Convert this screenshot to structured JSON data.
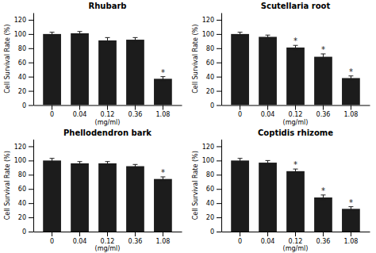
{
  "chart_data": [
    {
      "type": "bar",
      "title": "Rhubarb",
      "categories": [
        "0",
        "0.04",
        "0.12",
        "0.36",
        "1.08"
      ],
      "values": [
        100,
        101,
        91,
        92,
        37
      ],
      "errors": [
        2.5,
        2.5,
        4,
        3,
        3
      ],
      "significance_labels": [
        null,
        null,
        null,
        null,
        "*"
      ],
      "color": "#1c1c1c",
      "xlabel": "(mg/ml)",
      "ylabel": "Cell Survival Rate (%)",
      "ylim": [
        0,
        130
      ],
      "yticks": [
        0,
        20,
        40,
        60,
        80,
        100,
        120
      ],
      "grid": false
    },
    {
      "type": "bar",
      "title": "Scutellaria root",
      "categories": [
        "0",
        "0.04",
        "0.12",
        "0.36",
        "1.08"
      ],
      "values": [
        100,
        96,
        81,
        68,
        38
      ],
      "errors": [
        2.5,
        2.5,
        3,
        4,
        3
      ],
      "significance_labels": [
        null,
        null,
        "*",
        "*",
        "*"
      ],
      "color": "#1c1c1c",
      "xlabel": "(mg/ml)",
      "ylabel": "Cell Survival Rate (%)",
      "ylim": [
        0,
        130
      ],
      "yticks": [
        0,
        20,
        40,
        60,
        80,
        100,
        120
      ],
      "grid": false
    },
    {
      "type": "bar",
      "title": "Phellodendron bark",
      "categories": [
        "0",
        "0.04",
        "0.12",
        "0.36",
        "1.08"
      ],
      "values": [
        100,
        96,
        96,
        92,
        74
      ],
      "errors": [
        3,
        2.5,
        2.5,
        2.5,
        3
      ],
      "significance_labels": [
        null,
        null,
        null,
        null,
        "*"
      ],
      "color": "#1c1c1c",
      "xlabel": "(mg/ml)",
      "ylabel": "Cell Survival Rate (%)",
      "ylim": [
        0,
        130
      ],
      "yticks": [
        0,
        20,
        40,
        60,
        80,
        100,
        120
      ],
      "grid": false
    },
    {
      "type": "bar",
      "title": "Coptidis rhizome",
      "categories": [
        "0",
        "0.04",
        "0.12",
        "0.36",
        "1.08"
      ],
      "values": [
        100,
        97,
        85,
        48,
        32
      ],
      "errors": [
        3,
        3,
        3,
        3.5,
        3
      ],
      "significance_labels": [
        null,
        null,
        "*",
        "*",
        "*"
      ],
      "color": "#1c1c1c",
      "xlabel": "(mg/ml)",
      "ylabel": "Cell Survival Rate (%)",
      "ylim": [
        0,
        130
      ],
      "yticks": [
        0,
        20,
        40,
        60,
        80,
        100,
        120
      ],
      "grid": false
    }
  ]
}
